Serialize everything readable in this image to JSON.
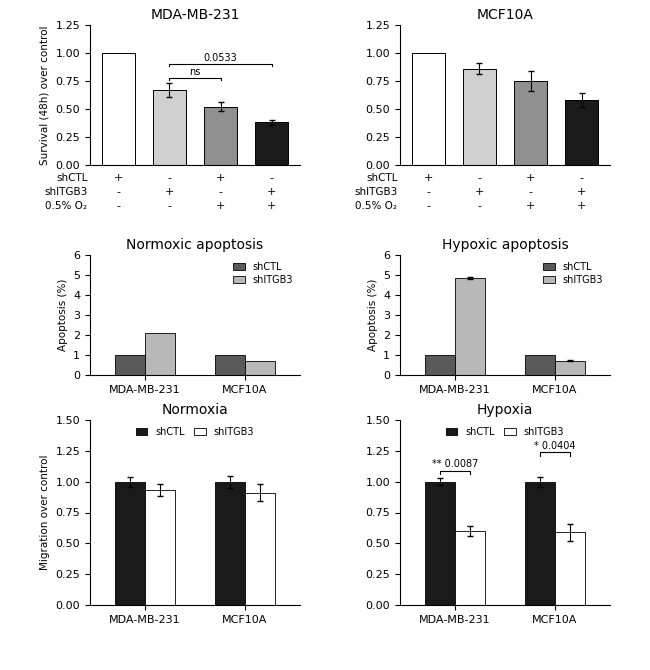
{
  "chart_data": [
    {
      "type": "bar",
      "title": "MDA-MB-231",
      "ylabel": "Survival (48h) over control",
      "categories": [
        null,
        null,
        null,
        null
      ],
      "values": [
        1.0,
        0.67,
        0.52,
        0.38
      ],
      "errors": [
        0.0,
        0.06,
        0.04,
        0.025
      ],
      "colors": [
        "#ffffff",
        "#d0d0d0",
        "#909090",
        "#1a1a1a"
      ],
      "condition_rows": [
        {
          "name": "shCTL",
          "values": [
            "+",
            "-",
            "+",
            "-"
          ]
        },
        {
          "name": "shITGB3",
          "values": [
            "-",
            "+",
            "-",
            "+"
          ]
        },
        {
          "name": "0.5% O₂",
          "values": [
            "-",
            "-",
            "+",
            "+"
          ]
        }
      ],
      "ylim": [
        0.0,
        1.25
      ],
      "yticks": [
        {
          "value": 0.0,
          "label": "0.00"
        },
        {
          "value": 0.25,
          "label": "0.25"
        },
        {
          "value": 0.5,
          "label": "0.50"
        },
        {
          "value": 0.75,
          "label": "0.75"
        },
        {
          "value": 1.0,
          "label": "1.00"
        },
        {
          "value": 1.25,
          "label": "1.25"
        }
      ],
      "annotations": [
        {
          "text": "ns",
          "from": 1,
          "to": 2
        },
        {
          "text": "0.0533",
          "from": 1,
          "to": 3
        }
      ]
    },
    {
      "type": "bar",
      "title": "MCF10A",
      "categories": [
        null,
        null,
        null,
        null
      ],
      "values": [
        1.0,
        0.86,
        0.75,
        0.58
      ],
      "errors": [
        0.0,
        0.05,
        0.09,
        0.065
      ],
      "colors": [
        "#ffffff",
        "#d0d0d0",
        "#909090",
        "#1a1a1a"
      ],
      "condition_rows": [
        {
          "name": "shCTL",
          "values": [
            "+",
            "-",
            "+",
            "-"
          ]
        },
        {
          "name": "shITGB3",
          "values": [
            "-",
            "+",
            "-",
            "+"
          ]
        },
        {
          "name": "0.5% O₂",
          "values": [
            "-",
            "-",
            "+",
            "+"
          ]
        }
      ],
      "ylim": [
        0.0,
        1.25
      ],
      "yticks": [
        {
          "value": 0.0,
          "label": "0.00"
        },
        {
          "value": 0.25,
          "label": "0.25"
        },
        {
          "value": 0.5,
          "label": "0.50"
        },
        {
          "value": 0.75,
          "label": "0.75"
        },
        {
          "value": 1.0,
          "label": "1.00"
        },
        {
          "value": 1.25,
          "label": "1.25"
        }
      ]
    },
    {
      "type": "bar",
      "title": "Normoxic apoptosis",
      "ylabel": "Apoptosis (%)",
      "categories": [
        "MDA-MB-231",
        "MCF10A"
      ],
      "series": [
        {
          "name": "shCTL",
          "color": "#5a5a5a",
          "values": [
            1.0,
            1.0
          ]
        },
        {
          "name": "shITGB3",
          "color": "#b8b8b8",
          "values": [
            2.1,
            0.7
          ]
        }
      ],
      "ylim": [
        0,
        6
      ],
      "yticks": [
        0,
        1,
        2,
        3,
        4,
        5,
        6
      ],
      "legend": "upper right"
    },
    {
      "type": "bar",
      "title": "Hypoxic apoptosis",
      "ylabel": "Apoptosis (%)",
      "categories": [
        "MDA-MB-231",
        "MCF10A"
      ],
      "series": [
        {
          "name": "shCTL",
          "color": "#5a5a5a",
          "values": [
            1.0,
            1.0
          ]
        },
        {
          "name": "shITGB3",
          "color": "#b8b8b8",
          "values": [
            4.85,
            0.72
          ],
          "errors": [
            0.05,
            0.03
          ]
        }
      ],
      "ylim": [
        0,
        6
      ],
      "yticks": [
        0,
        1,
        2,
        3,
        4,
        5,
        6
      ],
      "legend": "upper right"
    },
    {
      "type": "bar",
      "title": "Normoxia",
      "ylabel": "Migration over control",
      "categories": [
        "MDA-MB-231",
        "MCF10A"
      ],
      "series": [
        {
          "name": "shCTL",
          "color": "#1a1a1a",
          "values": [
            1.0,
            1.0
          ],
          "errors": [
            0.04,
            0.05
          ]
        },
        {
          "name": "shITGB3",
          "color": "#ffffff",
          "values": [
            0.93,
            0.91
          ],
          "errors": [
            0.05,
            0.07
          ]
        }
      ],
      "ylim": [
        0.0,
        1.5
      ],
      "yticks": [
        {
          "value": 0.0,
          "label": "0.00"
        },
        {
          "value": 0.25,
          "label": "0.25"
        },
        {
          "value": 0.5,
          "label": "0.50"
        },
        {
          "value": 0.75,
          "label": "0.75"
        },
        {
          "value": 1.0,
          "label": "1.00"
        },
        {
          "value": 1.25,
          "label": "1.25"
        },
        {
          "value": 1.5,
          "label": "1.50"
        }
      ],
      "legend": "upper center"
    },
    {
      "type": "bar",
      "title": "Hypoxia",
      "categories": [
        "MDA-MB-231",
        "MCF10A"
      ],
      "series": [
        {
          "name": "shCTL",
          "color": "#1a1a1a",
          "values": [
            1.0,
            1.0
          ],
          "errors": [
            0.03,
            0.04
          ]
        },
        {
          "name": "shITGB3",
          "color": "#ffffff",
          "values": [
            0.6,
            0.59
          ],
          "errors": [
            0.04,
            0.07
          ]
        }
      ],
      "ylim": [
        0.0,
        1.5
      ],
      "yticks": [
        {
          "value": 0.0,
          "label": "0.00"
        },
        {
          "value": 0.25,
          "label": "0.25"
        },
        {
          "value": 0.5,
          "label": "0.50"
        },
        {
          "value": 0.75,
          "label": "0.75"
        },
        {
          "value": 1.0,
          "label": "1.00"
        },
        {
          "value": 1.25,
          "label": "1.25"
        },
        {
          "value": 1.5,
          "label": "1.50"
        }
      ],
      "legend": "upper center",
      "annotations": [
        {
          "text": "** 0.0087",
          "category": "MDA-MB-231"
        },
        {
          "text": "* 0.0404",
          "category": "MCF10A"
        }
      ]
    }
  ]
}
